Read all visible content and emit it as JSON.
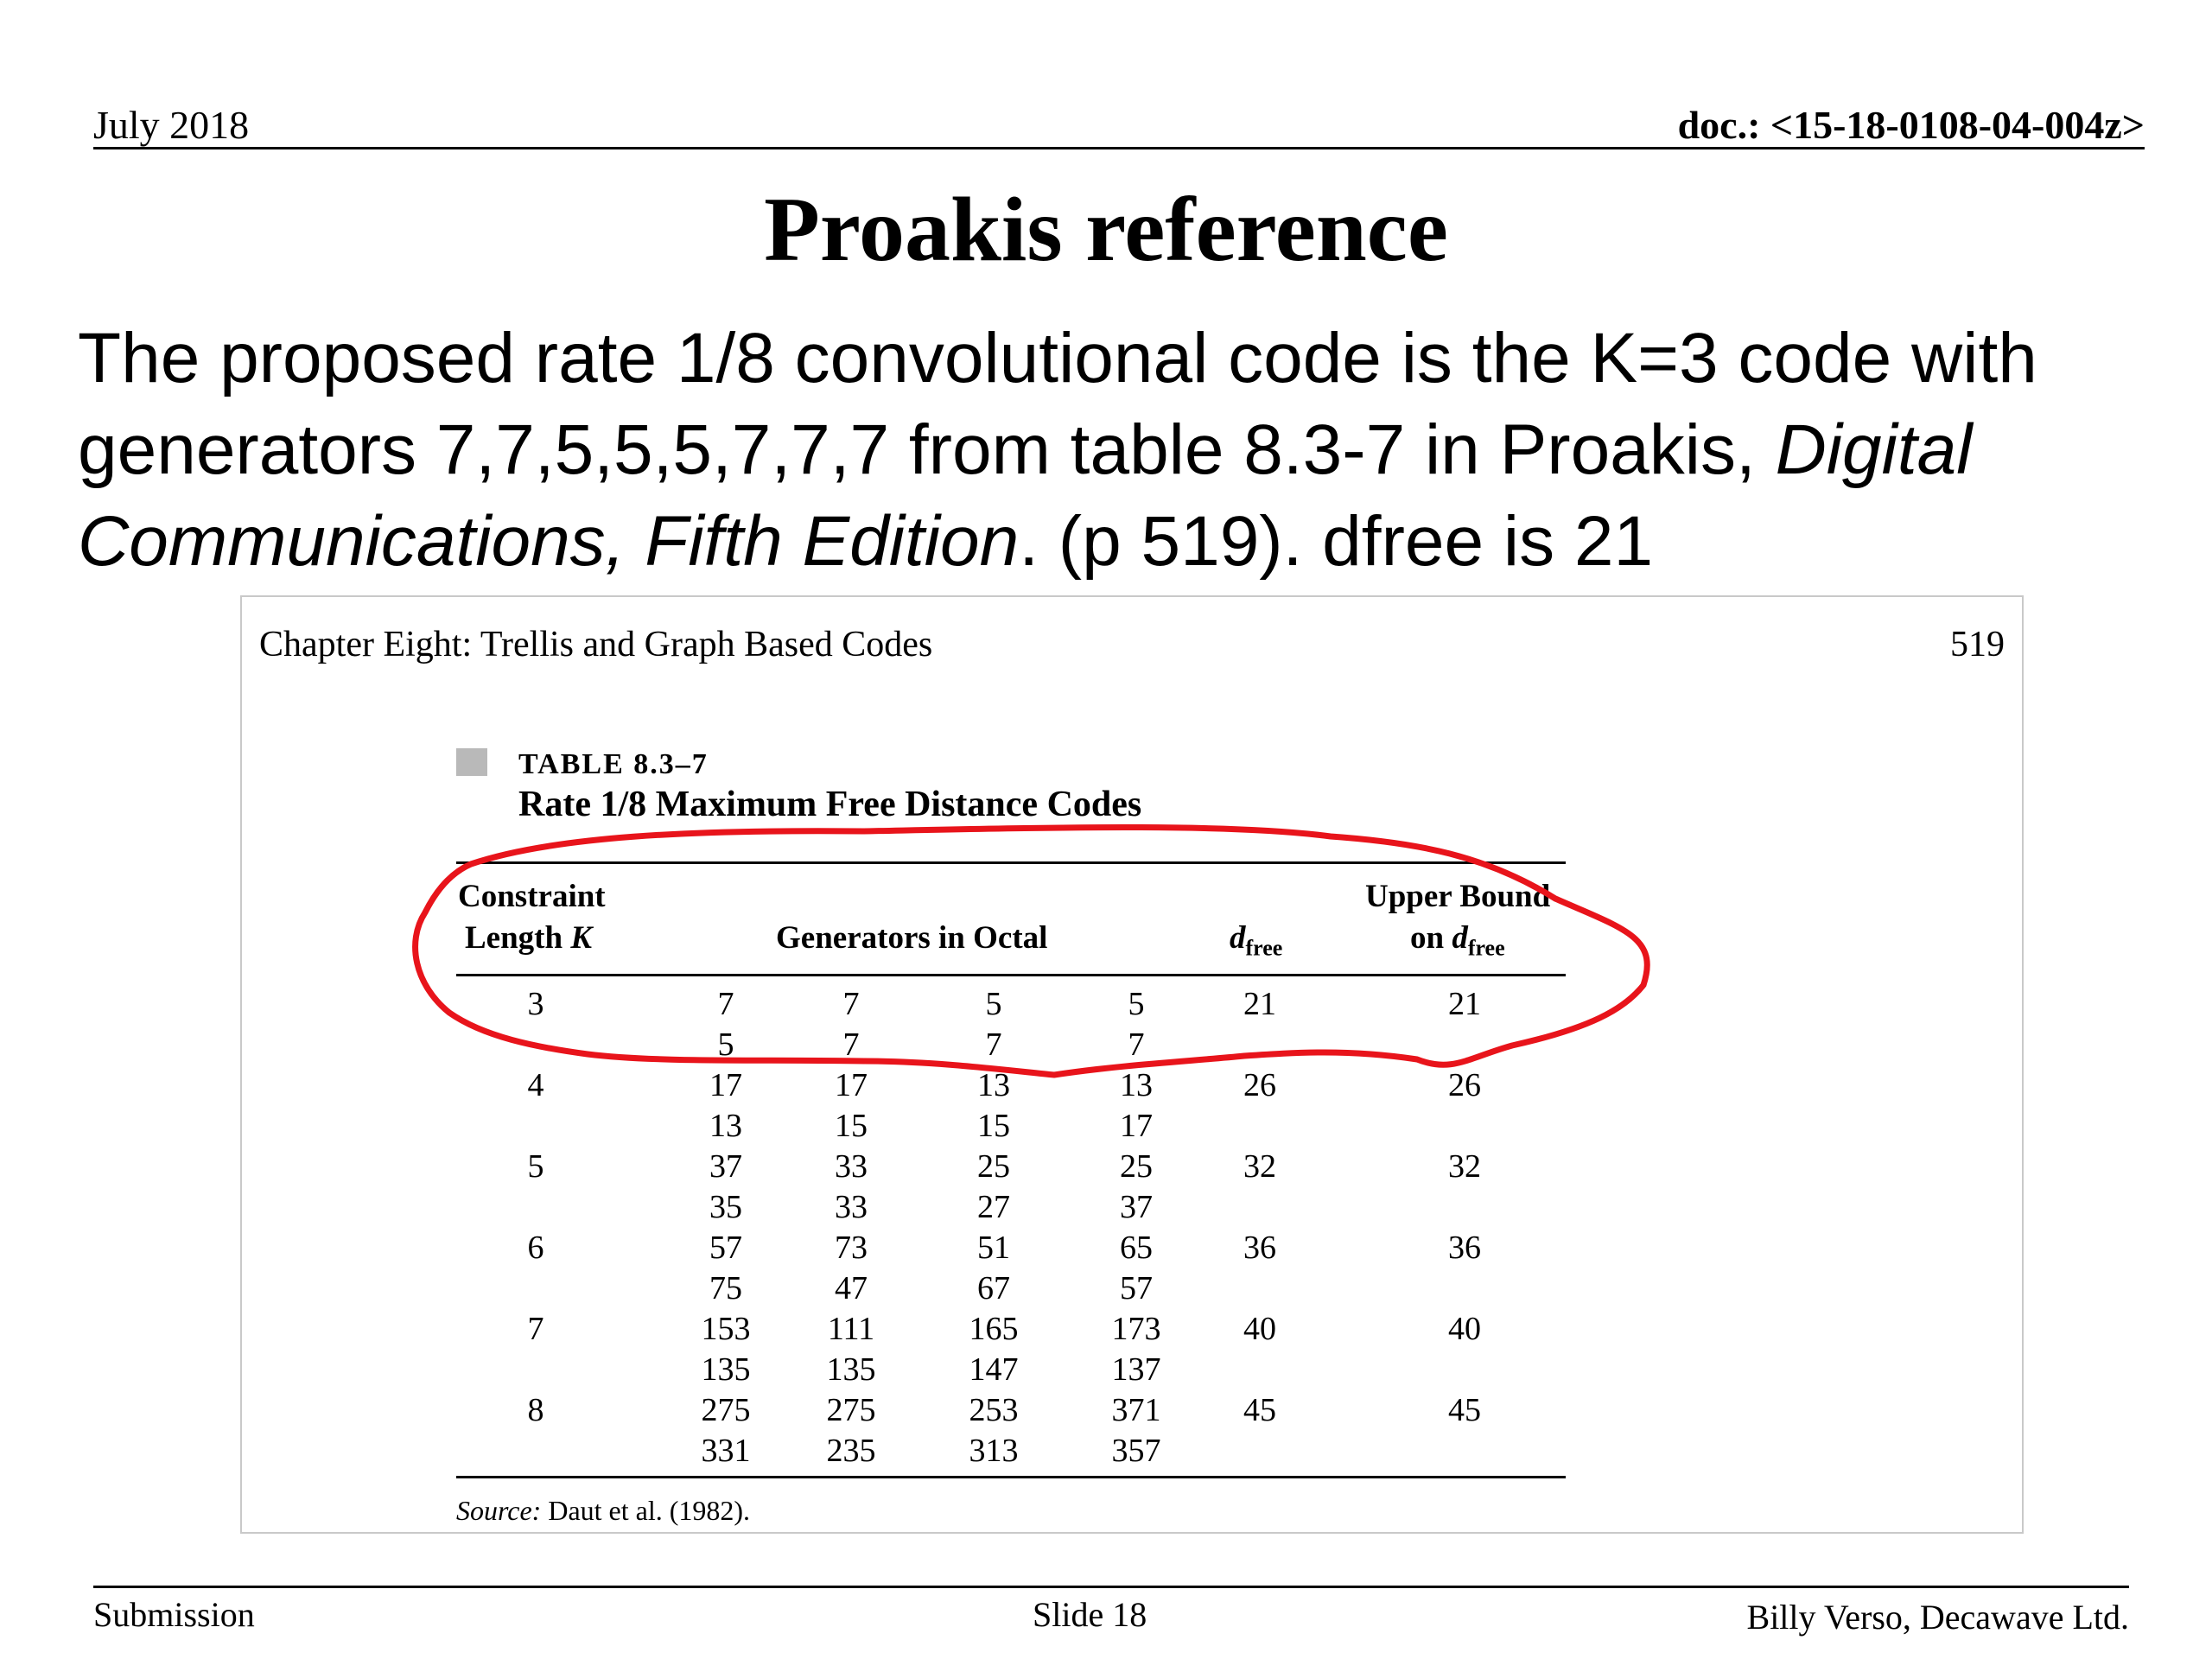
{
  "header": {
    "date": "July 2018",
    "doc": "doc.: <15-18-0108-04-004z>"
  },
  "title": "Proakis reference",
  "body": {
    "part1": "The proposed rate 1/8 convolutional code is the K=3 code with generators 7,7,5,5,5,7,7,7 from table 8.3-7 in Proakis, ",
    "book": "Digital Communications, Fifth Edition",
    "part2": ". (p 519). dfree is 21"
  },
  "excerpt": {
    "chapter": "Chapter Eight:  Trellis and Graph Based Codes",
    "page": "519",
    "table_number": "TABLE 8.3–7",
    "table_caption": "Rate 1/8 Maximum Free Distance Codes",
    "headers": {
      "constraint_1": "Constraint",
      "constraint_2": "Length",
      "constraint_var": "K",
      "generators": "Generators in Octal",
      "dfree_d": "d",
      "dfree_sub": "free",
      "upper_1": "Upper Bound",
      "upper_2": "on",
      "upper_d": "d",
      "upper_sub": "free"
    },
    "rows": [
      {
        "k": "3",
        "g1": [
          "7",
          "7",
          "5",
          "5"
        ],
        "g2": [
          "5",
          "7",
          "7",
          "7"
        ],
        "dfree": "21",
        "upper": "21"
      },
      {
        "k": "4",
        "g1": [
          "17",
          "17",
          "13",
          "13"
        ],
        "g2": [
          "13",
          "15",
          "15",
          "17"
        ],
        "dfree": "26",
        "upper": "26"
      },
      {
        "k": "5",
        "g1": [
          "37",
          "33",
          "25",
          "25"
        ],
        "g2": [
          "35",
          "33",
          "27",
          "37"
        ],
        "dfree": "32",
        "upper": "32"
      },
      {
        "k": "6",
        "g1": [
          "57",
          "73",
          "51",
          "65"
        ],
        "g2": [
          "75",
          "47",
          "67",
          "57"
        ],
        "dfree": "36",
        "upper": "36"
      },
      {
        "k": "7",
        "g1": [
          "153",
          "111",
          "165",
          "173"
        ],
        "g2": [
          "135",
          "135",
          "147",
          "137"
        ],
        "dfree": "40",
        "upper": "40"
      },
      {
        "k": "8",
        "g1": [
          "275",
          "275",
          "253",
          "371"
        ],
        "g2": [
          "331",
          "235",
          "313",
          "357"
        ],
        "dfree": "45",
        "upper": "45"
      }
    ],
    "source_label": "Source:",
    "source_text": " Daut et al. (1982)."
  },
  "highlight_color": "#e8141b",
  "footer": {
    "left": "Submission",
    "center": "Slide 18",
    "right": "Billy Verso,  Decawave Ltd."
  }
}
